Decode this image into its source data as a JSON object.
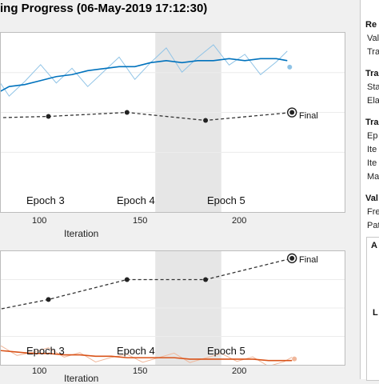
{
  "window": {
    "title": "ing Progress (06-May-2019 17:12:30)"
  },
  "top_plot": {
    "epochs": [
      "Epoch 3",
      "Epoch 4",
      "Epoch 5"
    ],
    "x_ticks": [
      "100",
      "150",
      "200"
    ],
    "xlabel": "Iteration",
    "final_label": "Final",
    "colors": {
      "smoothed": "#0072bd",
      "raw": "#8fc3e6",
      "validation": "#333333",
      "shade": "#e6e6e6"
    }
  },
  "bottom_plot": {
    "epochs": [
      "Epoch 3",
      "Epoch 4",
      "Epoch 5"
    ],
    "x_ticks": [
      "100",
      "150",
      "200"
    ],
    "xlabel": "Iteration",
    "final_label": "Final",
    "colors": {
      "smoothed": "#d95319",
      "raw": "#f0b89c",
      "validation": "#333333",
      "shade": "#e6e6e6"
    }
  },
  "side_panel": {
    "sections": [
      {
        "head": "Re",
        "rows": [
          "Val",
          "Tra"
        ]
      },
      {
        "head": "Tra",
        "rows": [
          "Sta",
          "Ela"
        ]
      },
      {
        "head": "Tra",
        "rows": [
          "Ep",
          "Ite",
          "Ite",
          "Ma"
        ]
      },
      {
        "head": "Val",
        "rows": [
          "Fre",
          "Pat"
        ]
      }
    ],
    "sub_letters": [
      "A",
      "L"
    ]
  },
  "chart_data": [
    {
      "type": "line",
      "title": "",
      "xlabel": "Iteration",
      "ylabel": "",
      "xlim": [
        0,
        230
      ],
      "x_ticks": [
        100,
        150,
        200
      ],
      "epoch_shading": [
        [
          0,
          10
        ],
        [
          138,
          180
        ]
      ],
      "series": [
        {
          "x": [
            0,
            8,
            15,
            22,
            30,
            38,
            45,
            55,
            65,
            75,
            85,
            95,
            105,
            115,
            125,
            135,
            145,
            155,
            165,
            175,
            185,
            195,
            205,
            215,
            222
          ],
          "values": [
            34,
            36,
            40,
            50,
            56,
            60,
            63,
            64,
            66,
            68,
            69,
            71,
            72,
            73,
            73,
            75,
            76,
            75,
            76,
            76,
            77,
            76,
            77,
            77,
            76
          ]
        },
        {
          "x": [
            -5,
            20,
            70,
            120,
            170,
            225
          ],
          "values": [
            45,
            47,
            48,
            50,
            46,
            50
          ]
        }
      ]
    },
    {
      "type": "line",
      "title": "",
      "xlabel": "Iteration",
      "ylabel": "",
      "xlim": [
        0,
        230
      ],
      "x_ticks": [
        100,
        150,
        200
      ],
      "epoch_shading": [
        [
          0,
          10
        ],
        [
          138,
          180
        ]
      ],
      "series": [
        {
          "x": [
            0,
            5,
            12,
            20,
            30,
            40,
            50,
            60,
            70,
            80,
            90,
            100,
            110,
            120,
            130,
            140,
            150,
            160,
            170,
            180,
            190,
            200,
            210,
            220,
            225
          ],
          "values": [
            30,
            20,
            24,
            16,
            12,
            10,
            9,
            8,
            8,
            7,
            7,
            6,
            6,
            5,
            5,
            5,
            5,
            4,
            4,
            4,
            4,
            4,
            3,
            3,
            3
          ]
        },
        {
          "x": [
            -5,
            20,
            70,
            120,
            170,
            225
          ],
          "values": [
            28,
            35,
            46,
            60,
            60,
            75
          ]
        }
      ]
    }
  ]
}
